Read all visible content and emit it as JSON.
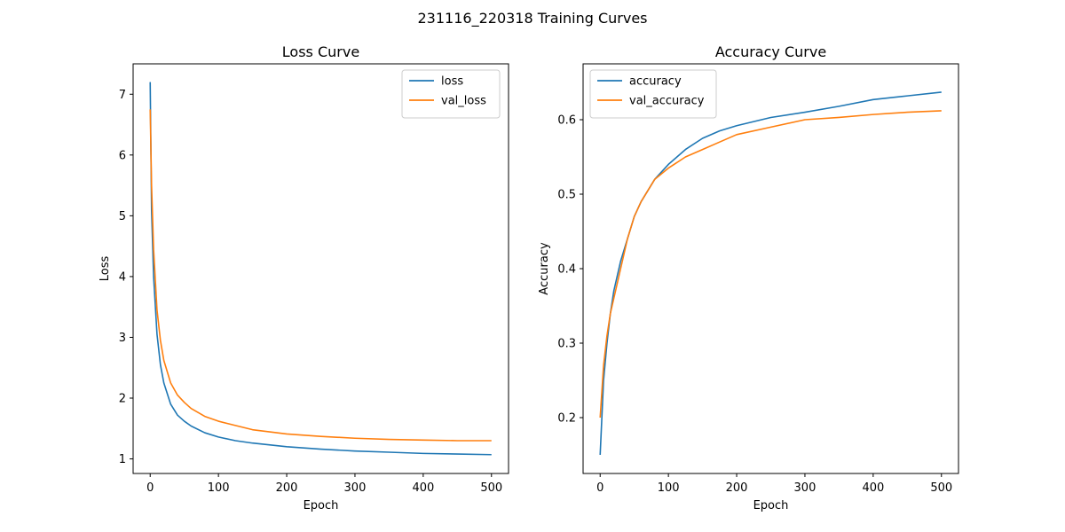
{
  "figure": {
    "suptitle": "231116_220318 Training Curves"
  },
  "chart_data": [
    {
      "type": "line",
      "title": "Loss Curve",
      "xlabel": "Epoch",
      "ylabel": "Loss",
      "xlim": [
        -25,
        525
      ],
      "ylim": [
        0.76,
        7.5
      ],
      "xticks": [
        0,
        100,
        200,
        300,
        400,
        500
      ],
      "yticks": [
        1,
        2,
        3,
        4,
        5,
        6,
        7
      ],
      "grid": false,
      "legend": "top-right",
      "x": [
        0,
        2,
        5,
        10,
        15,
        20,
        30,
        40,
        50,
        60,
        80,
        100,
        125,
        150,
        200,
        250,
        300,
        350,
        400,
        450,
        500
      ],
      "series": [
        {
          "name": "loss",
          "color": "#1f77b4",
          "values": [
            7.2,
            5.1,
            4.0,
            3.05,
            2.55,
            2.25,
            1.9,
            1.72,
            1.62,
            1.54,
            1.43,
            1.36,
            1.3,
            1.26,
            1.2,
            1.16,
            1.13,
            1.11,
            1.09,
            1.08,
            1.07
          ]
        },
        {
          "name": "val_loss",
          "color": "#ff7f0e",
          "values": [
            6.75,
            5.5,
            4.45,
            3.45,
            2.95,
            2.62,
            2.25,
            2.05,
            1.93,
            1.83,
            1.7,
            1.62,
            1.55,
            1.48,
            1.41,
            1.37,
            1.34,
            1.32,
            1.31,
            1.3,
            1.3
          ]
        }
      ]
    },
    {
      "type": "line",
      "title": "Accuracy Curve",
      "xlabel": "Epoch",
      "ylabel": "Accuracy",
      "xlim": [
        -25,
        525
      ],
      "ylim": [
        0.125,
        0.675
      ],
      "xticks": [
        0,
        100,
        200,
        300,
        400,
        500
      ],
      "yticks": [
        0.2,
        0.3,
        0.4,
        0.5,
        0.6
      ],
      "grid": false,
      "legend": "top-left",
      "x": [
        0,
        5,
        10,
        15,
        20,
        30,
        40,
        50,
        60,
        80,
        100,
        125,
        150,
        175,
        200,
        250,
        300,
        350,
        400,
        450,
        500
      ],
      "series": [
        {
          "name": "accuracy",
          "color": "#1f77b4",
          "values": [
            0.15,
            0.25,
            0.3,
            0.34,
            0.37,
            0.41,
            0.44,
            0.47,
            0.49,
            0.52,
            0.54,
            0.56,
            0.575,
            0.585,
            0.592,
            0.603,
            0.61,
            0.618,
            0.627,
            0.632,
            0.637
          ]
        },
        {
          "name": "val_accuracy",
          "color": "#ff7f0e",
          "values": [
            0.2,
            0.27,
            0.31,
            0.34,
            0.36,
            0.4,
            0.44,
            0.47,
            0.49,
            0.52,
            0.535,
            0.55,
            0.56,
            0.57,
            0.58,
            0.59,
            0.6,
            0.603,
            0.607,
            0.61,
            0.612
          ]
        }
      ]
    }
  ]
}
